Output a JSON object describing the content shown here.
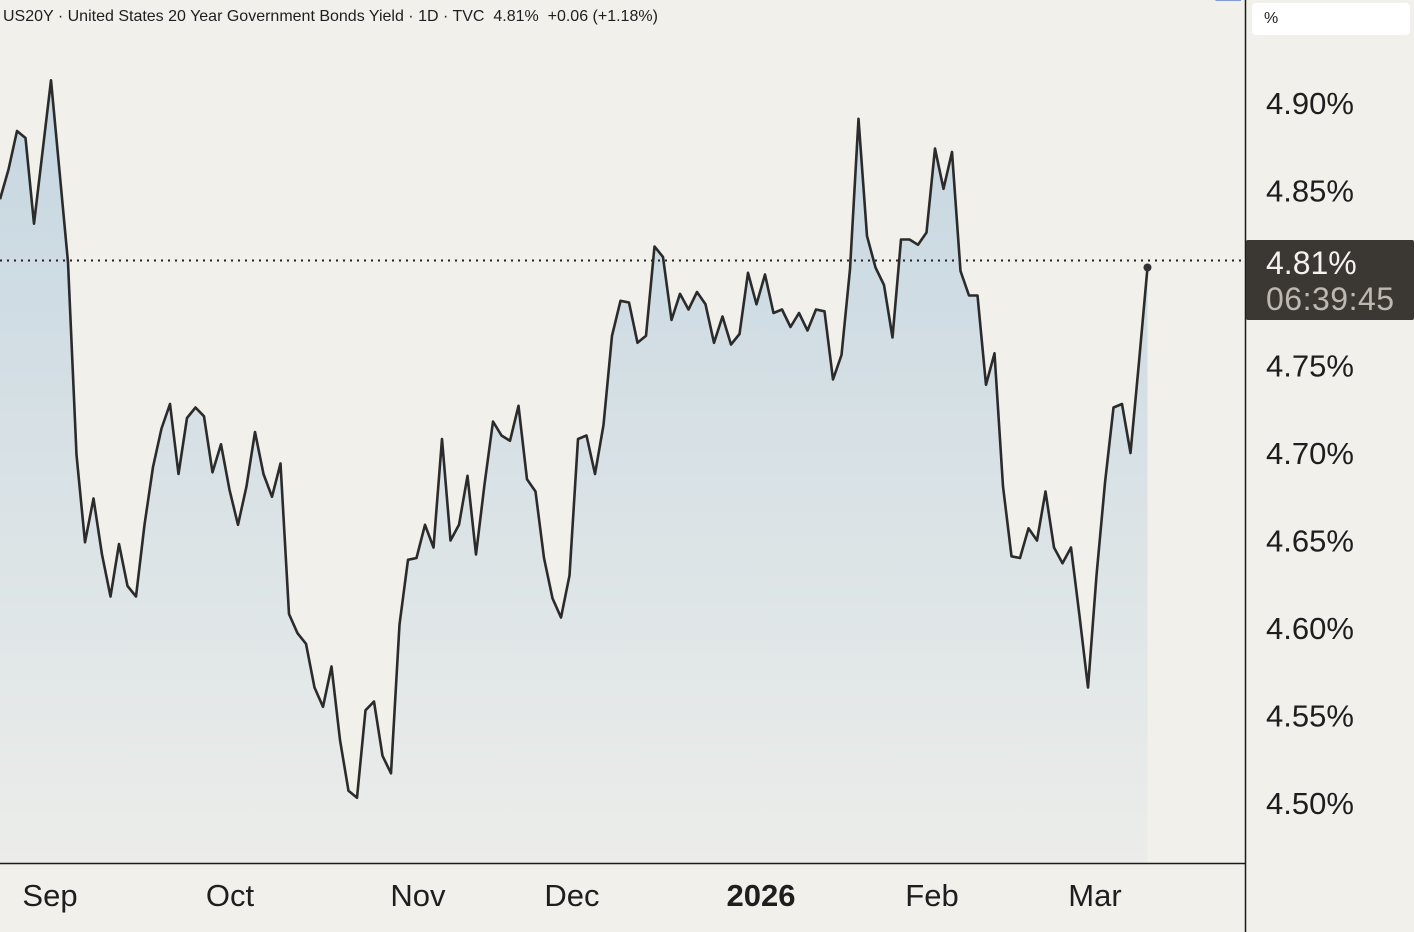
{
  "header": {
    "symbol": "US20Y",
    "name": "United States 20 Year Government Bonds Yield",
    "interval": "1D",
    "source": "TVC",
    "last": "4.81%",
    "change": "+0.06 (+1.18%)"
  },
  "axis_unit": "%",
  "last_price_label": {
    "value": "4.81%",
    "countdown": "06:39:45"
  },
  "colors": {
    "background": "#f1f0eb",
    "line": "#2b2b2b",
    "area_top": "#c9d9e3",
    "axis": "#1a1a1a",
    "label_bg": "#3b3834",
    "trendline": "#5b7fd1"
  },
  "chart_data": {
    "type": "area",
    "title": "US20Y · United States 20 Year Government Bonds Yield · 1D · TVC",
    "ylim": [
      4.455,
      4.975
    ],
    "y_ticks": [
      "4.90%",
      "4.85%",
      "4.75%",
      "4.70%",
      "4.65%",
      "4.60%",
      "4.55%",
      "4.50%"
    ],
    "x_ticks": [
      "Sep",
      "Oct",
      "Nov",
      "Dec",
      "2026",
      "Feb",
      "Mar"
    ],
    "reference_line": {
      "value": 4.81,
      "style": "dotted"
    },
    "trend_segment": {
      "from_point": 143,
      "to_point": 146
    },
    "series": [
      {
        "values": [
          4.845,
          4.862,
          4.884,
          4.88,
          4.831,
          4.872,
          4.913,
          4.861,
          4.809,
          4.699,
          4.649,
          4.674,
          4.642,
          4.618,
          4.648,
          4.624,
          4.618,
          4.659,
          4.692,
          4.714,
          4.728,
          4.688,
          4.72,
          4.726,
          4.721,
          4.689,
          4.705,
          4.679,
          4.659,
          4.681,
          4.712,
          4.688,
          4.675,
          4.694,
          4.608,
          4.597,
          4.591,
          4.566,
          4.555,
          4.578,
          4.536,
          4.507,
          4.503,
          4.553,
          4.558,
          4.527,
          4.517,
          4.602,
          4.639,
          4.64,
          4.659,
          4.646,
          4.708,
          4.65,
          4.659,
          4.687,
          4.642,
          4.682,
          4.718,
          4.71,
          4.707,
          4.727,
          4.685,
          4.678,
          4.64,
          4.617,
          4.606,
          4.63,
          4.708,
          4.71,
          4.688,
          4.716,
          4.767,
          4.787,
          4.786,
          4.763,
          4.767,
          4.818,
          4.812,
          4.776,
          4.791,
          4.782,
          4.792,
          4.785,
          4.763,
          4.778,
          4.762,
          4.768,
          4.803,
          4.785,
          4.802,
          4.78,
          4.782,
          4.772,
          4.78,
          4.77,
          4.782,
          4.781,
          4.742,
          4.756,
          4.805,
          4.891,
          4.824,
          4.806,
          4.796,
          4.766,
          4.822,
          4.822,
          4.819,
          4.826,
          4.874,
          4.851,
          4.872,
          4.804,
          4.79,
          4.79,
          4.739,
          4.757,
          4.681,
          4.641,
          4.64,
          4.657,
          4.65,
          4.678,
          4.646,
          4.637,
          4.646,
          4.607,
          4.566,
          4.63,
          4.683,
          4.726,
          4.728,
          4.7,
          4.752,
          4.806
        ]
      }
    ]
  }
}
